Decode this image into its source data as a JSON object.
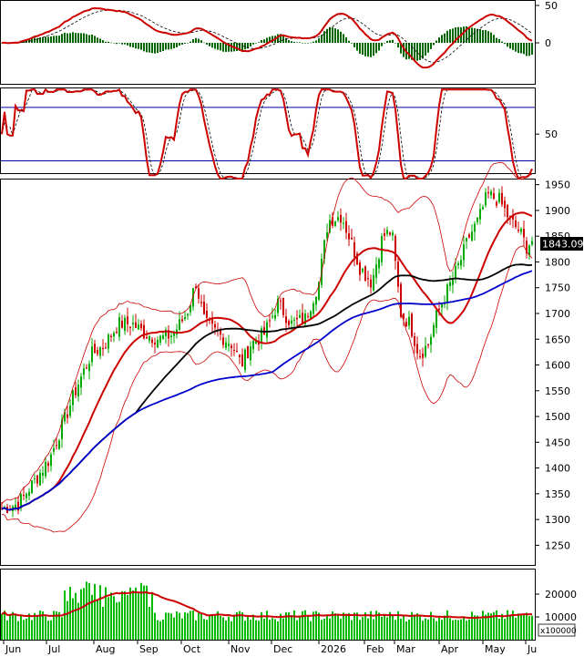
{
  "chart_data": {
    "type": "candlestick",
    "panels": [
      {
        "id": "macd",
        "yticks": [
          "50",
          "0"
        ],
        "series": [
          "macd-line",
          "signal-line",
          "histogram"
        ]
      },
      {
        "id": "stochastic",
        "yticks": [
          "50"
        ],
        "levels": [
          80,
          20
        ],
        "series": [
          "%K",
          "%D"
        ]
      },
      {
        "id": "price",
        "yticks": [
          "1950",
          "1900",
          "1850",
          "1800",
          "1750",
          "1700",
          "1650",
          "1600",
          "1550",
          "1500",
          "1450",
          "1400",
          "1350",
          "1300",
          "1250"
        ],
        "ylim": [
          1210,
          1960
        ],
        "last_price": "1843.090",
        "overlays": [
          "bollinger-upper",
          "bollinger-middle",
          "bollinger-lower",
          "ma-medium",
          "ma-long"
        ]
      },
      {
        "id": "volume",
        "yticks": [
          "20000",
          "10000"
        ],
        "unit_label": "x100000"
      }
    ],
    "x_labels": [
      "Jun",
      "Jul",
      "Aug",
      "Sep",
      "Oct",
      "Nov",
      "Dec",
      "2026",
      "Feb",
      "Mar",
      "Apr",
      "May",
      "Ju"
    ],
    "price_keypoints": [
      [
        0,
        1320
      ],
      [
        20,
        1330
      ],
      [
        40,
        1380
      ],
      [
        55,
        1420
      ],
      [
        70,
        1490
      ],
      [
        85,
        1560
      ],
      [
        100,
        1620
      ],
      [
        115,
        1640
      ],
      [
        130,
        1680
      ],
      [
        145,
        1680
      ],
      [
        160,
        1660
      ],
      [
        175,
        1650
      ],
      [
        190,
        1660
      ],
      [
        205,
        1700
      ],
      [
        215,
        1760
      ],
      [
        225,
        1680
      ],
      [
        240,
        1660
      ],
      [
        255,
        1640
      ],
      [
        265,
        1600
      ],
      [
        275,
        1640
      ],
      [
        290,
        1660
      ],
      [
        305,
        1720
      ],
      [
        320,
        1680
      ],
      [
        335,
        1690
      ],
      [
        350,
        1760
      ],
      [
        360,
        1880
      ],
      [
        375,
        1890
      ],
      [
        385,
        1840
      ],
      [
        395,
        1790
      ],
      [
        408,
        1760
      ],
      [
        420,
        1850
      ],
      [
        430,
        1860
      ],
      [
        440,
        1700
      ],
      [
        450,
        1680
      ],
      [
        460,
        1620
      ],
      [
        470,
        1640
      ],
      [
        480,
        1700
      ],
      [
        490,
        1740
      ],
      [
        505,
        1800
      ],
      [
        515,
        1850
      ],
      [
        525,
        1880
      ],
      [
        535,
        1930
      ],
      [
        548,
        1920
      ],
      [
        560,
        1880
      ],
      [
        570,
        1860
      ],
      [
        578,
        1830
      ],
      [
        585,
        1843
      ]
    ],
    "colors": {
      "up_candle": "#00aa00",
      "down_candle": "#cc0000",
      "bollinger": "#cc0000",
      "ma_medium": "#000000",
      "ma_long": "#0000cc",
      "signal": "#000000",
      "histogram": "#006600",
      "level_line": "#0000aa",
      "volume_bar": "#00bb00",
      "volume_ma": "#cc0000",
      "price_badge": "#000000"
    }
  }
}
